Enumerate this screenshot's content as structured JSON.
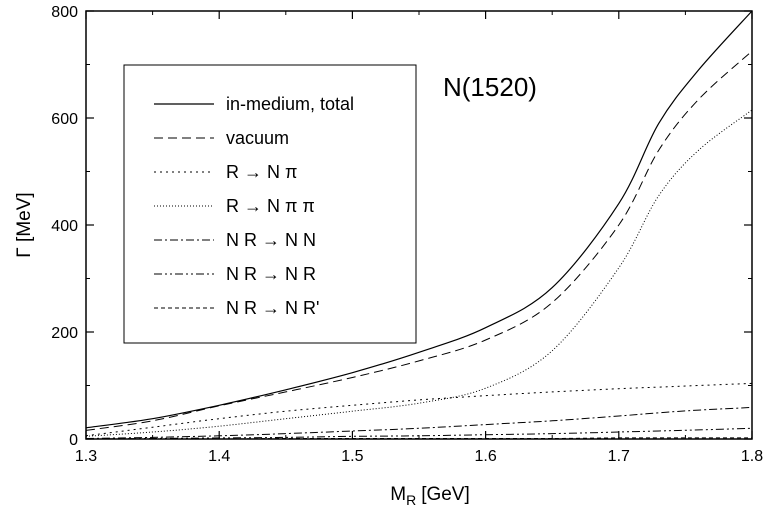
{
  "chart_data": {
    "type": "line",
    "annotation": "N(1520)",
    "xlabel": "M",
    "xlabel_sub": "R",
    "xlabel_unit": "[GeV]",
    "ylabel": "Γ [MeV]",
    "xlim": [
      1.3,
      1.8
    ],
    "ylim": [
      0,
      800
    ],
    "xticks": [
      1.3,
      1.4,
      1.5,
      1.6,
      1.7,
      1.8
    ],
    "yticks": [
      0,
      200,
      400,
      600,
      800
    ],
    "x_tick_labels": [
      "1.3",
      "1.4",
      "1.5",
      "1.6",
      "1.7",
      "1.8"
    ],
    "y_tick_labels": [
      "0",
      "200",
      "400",
      "600",
      "800"
    ],
    "grid": false,
    "legend_position": "upper-left",
    "x": [
      1.3,
      1.35,
      1.4,
      1.45,
      1.5,
      1.55,
      1.6,
      1.65,
      1.7,
      1.73,
      1.76,
      1.8
    ],
    "series": [
      {
        "name": "in-medium, total",
        "style": "solid",
        "values": [
          21,
          38,
          63,
          92,
          124,
          162,
          208,
          283,
          440,
          590,
          690,
          800
        ]
      },
      {
        "name": "vacuum",
        "style": "dashed",
        "values": [
          16,
          34,
          62,
          88,
          115,
          146,
          185,
          255,
          400,
          540,
          635,
          725
        ]
      },
      {
        "name": "R → N π",
        "style": "dotted",
        "values": [
          6,
          22,
          38,
          52,
          63,
          73,
          81,
          88,
          94,
          97,
          100,
          104
        ]
      },
      {
        "name": "R → N π π",
        "style": "fine-dotted",
        "values": [
          5,
          13,
          24,
          38,
          52,
          67,
          95,
          165,
          320,
          455,
          540,
          615
        ]
      },
      {
        "name": "N R → N N",
        "style": "dash-dot",
        "values": [
          1,
          3,
          6,
          10,
          15,
          20,
          27,
          34,
          43,
          49,
          54,
          59
        ]
      },
      {
        "name": "N R → N R",
        "style": "dash-dot-dot",
        "values": [
          0,
          1,
          2,
          3,
          5,
          6,
          8,
          10,
          13,
          15,
          17,
          20
        ]
      },
      {
        "name": "N R → N R'",
        "style": "short-dashed",
        "values": [
          0,
          0,
          0,
          1,
          1,
          1,
          1,
          1,
          2,
          2,
          2,
          2
        ]
      }
    ]
  }
}
